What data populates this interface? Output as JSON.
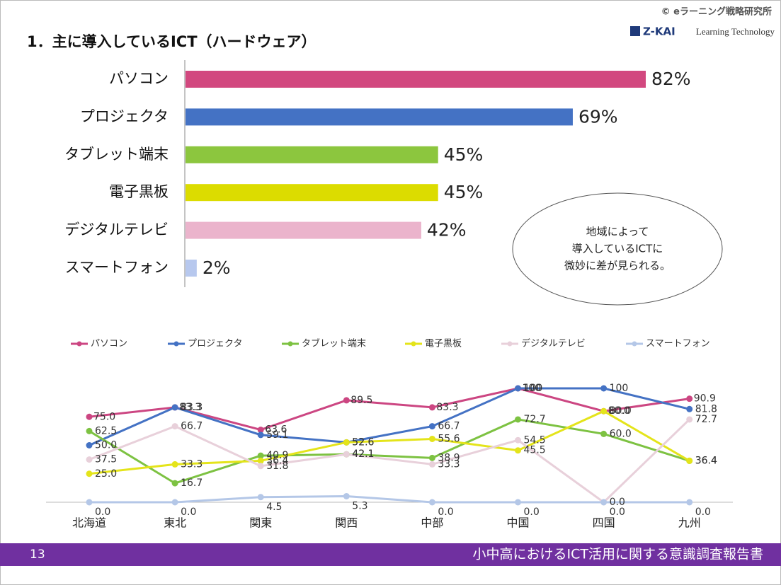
{
  "header": {
    "copyright": "© eラーニング戦略研究所",
    "logo": "Z-KAI",
    "logo_sub": "Learning Technology",
    "title": "1．主に導入しているICT（ハードウェア）"
  },
  "chart_data": [
    {
      "type": "hbar",
      "categories": [
        "パソコン",
        "プロジェクタ",
        "タブレット端末",
        "電子黒板",
        "デジタルテレビ",
        "スマートフォン"
      ],
      "values": [
        82,
        69,
        45,
        45,
        42,
        2
      ],
      "value_labels": [
        "82%",
        "69%",
        "45%",
        "45%",
        "42%",
        "2%"
      ],
      "colors": [
        "#d2487f",
        "#4472c4",
        "#8cc63e",
        "#dcdc00",
        "#ebb4cc",
        "#b7c8ee"
      ]
    },
    {
      "type": "line",
      "categories": [
        "北海道",
        "東北",
        "関東",
        "関西",
        "中部",
        "中国",
        "四国",
        "九州"
      ],
      "series": [
        {
          "name": "パソコン",
          "color": "#cc4682",
          "values": [
            75.0,
            83.3,
            63.6,
            89.5,
            83.3,
            100,
            80.0,
            90.9
          ],
          "value_labels": [
            "75.0",
            "83.3",
            "63.6",
            "89.5",
            "83.3",
            "100",
            "80.0",
            "90.9"
          ]
        },
        {
          "name": "プロジェクタ",
          "color": "#4472c4",
          "values": [
            50.0,
            83.3,
            59.1,
            52.6,
            66.7,
            100,
            100,
            81.8
          ],
          "value_labels": [
            "50.0",
            "83.3",
            "59.1",
            "52.6",
            "66.7",
            "100",
            "100",
            "81.8"
          ]
        },
        {
          "name": "タブレット端末",
          "color": "#7dc242",
          "values": [
            62.5,
            16.7,
            40.9,
            42.1,
            38.9,
            72.7,
            60.0,
            36.4
          ],
          "value_labels": [
            "62.5",
            "16.7",
            "40.9",
            "42.1",
            "38.9",
            "72.7",
            "60.0",
            "36.4"
          ]
        },
        {
          "name": "電子黒板",
          "color": "#e4e41a",
          "values": [
            25.0,
            33.3,
            36.4,
            52.6,
            55.6,
            45.5,
            80.0,
            36.4
          ],
          "value_labels": [
            "25.0",
            "33.3",
            "36.4",
            "52.6",
            "55.6",
            "45.5",
            "80.0",
            "36.4"
          ]
        },
        {
          "name": "デジタルテレビ",
          "color": "#e8d0da",
          "values": [
            37.5,
            66.7,
            31.8,
            42.1,
            33.3,
            54.5,
            0.0,
            72.7
          ],
          "value_labels": [
            "37.5",
            "66.7",
            "31.8",
            "42.1",
            "33.3",
            "54.5",
            "0.0",
            "72.7"
          ]
        },
        {
          "name": "スマートフォン",
          "color": "#b4c7e7",
          "values": [
            0.0,
            0.0,
            4.5,
            5.3,
            0.0,
            0.0,
            0.0,
            0.0
          ],
          "value_labels": [
            "0.0",
            "0.0",
            "4.5",
            "5.3",
            "0.0",
            "0.0",
            "0.0",
            "0.0"
          ]
        }
      ]
    }
  ],
  "callout": {
    "lines": [
      "地域によって",
      "導入しているICTに",
      "微妙に差が見られる。"
    ]
  },
  "footer": {
    "page": "13",
    "text": "小中高におけるICT活用に関する意識調査報告書"
  }
}
